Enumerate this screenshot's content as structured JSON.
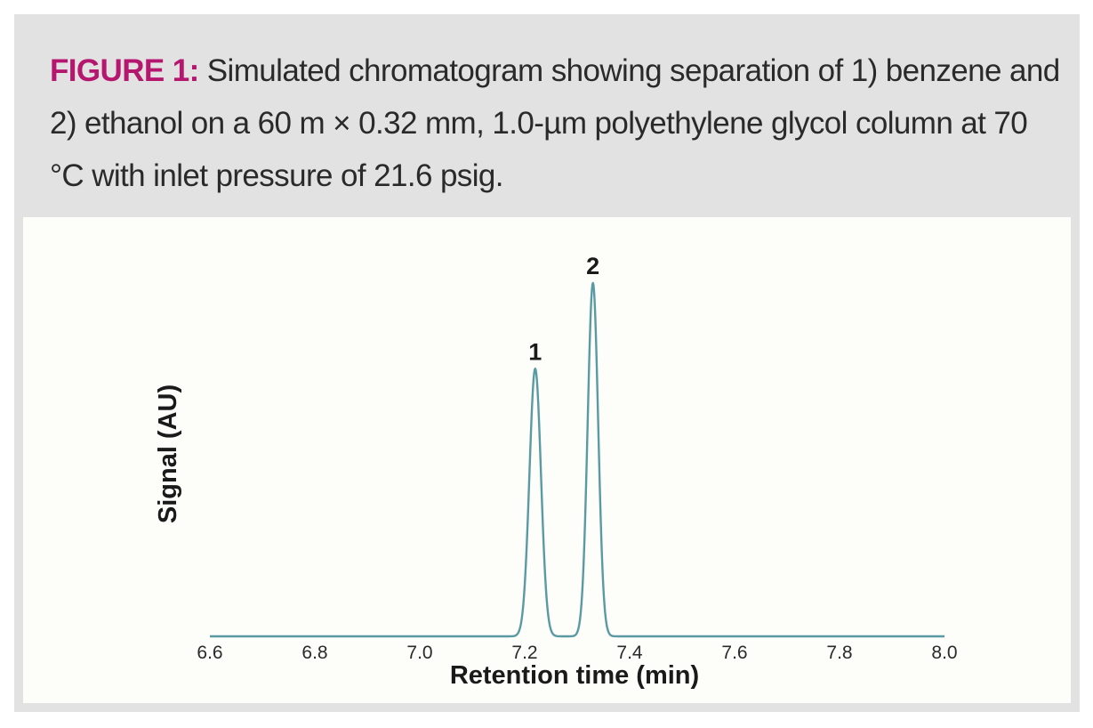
{
  "caption": {
    "label": "FIGURE 1:",
    "text": " Simulated chromatogram showing separation of 1) benzene and 2) ethanol on a 60 m × 0.32 mm, 1.0-µm polyethylene glycol column at 70 °C with inlet pressure of 21.6 psig."
  },
  "colors": {
    "label": "#b5176f",
    "trace": "#5a9aa3",
    "frame": "#e2e2e2",
    "panel": "#fdfdfa"
  },
  "chart_data": {
    "type": "line",
    "title": "",
    "xlabel": "Retention time (min)",
    "ylabel": "Signal (AU)",
    "xlim": [
      6.6,
      8.0
    ],
    "ylim": [
      0,
      1.0
    ],
    "xticks": [
      "6.6",
      "6.8",
      "7.0",
      "7.2",
      "7.4",
      "7.6",
      "7.8",
      "8.0"
    ],
    "grid": false,
    "series": [
      {
        "name": "chromatogram",
        "peaks": [
          {
            "label": "1",
            "compound": "benzene",
            "retention_time": 7.22,
            "height": 0.75,
            "width_sigma": 0.011
          },
          {
            "label": "2",
            "compound": "ethanol",
            "retention_time": 7.33,
            "height": 0.99,
            "width_sigma": 0.01
          }
        ],
        "x_range": [
          6.6,
          8.0
        ]
      }
    ]
  }
}
